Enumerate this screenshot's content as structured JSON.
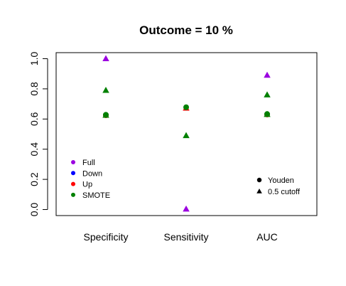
{
  "chart_data": {
    "type": "scatter",
    "title": "Outcome =  10 %",
    "categories": [
      "Specificity",
      "Sensitivity",
      "AUC"
    ],
    "y_ticks": [
      "0.0",
      "0.2",
      "0.4",
      "0.6",
      "0.8",
      "1.0"
    ],
    "ylim": [
      -0.04,
      1.04
    ],
    "grid": false,
    "methods": [
      {
        "name": "Full",
        "color": "#9b00e0"
      },
      {
        "name": "Down",
        "color": "#0000ff"
      },
      {
        "name": "Up",
        "color": "#ff0000"
      },
      {
        "name": "SMOTE",
        "color": "#008000"
      }
    ],
    "shapes": [
      {
        "name": "Youden",
        "marker": "circle"
      },
      {
        "name": "0.5 cutoff",
        "marker": "triangle"
      }
    ],
    "points": [
      {
        "category": "Specificity",
        "method": "Up",
        "shape": "Youden",
        "y": 0.625
      },
      {
        "category": "Specificity",
        "method": "SMOTE",
        "shape": "Youden",
        "y": 0.628
      },
      {
        "category": "Specificity",
        "method": "Full",
        "shape": "0.5 cutoff",
        "y": 1.0
      },
      {
        "category": "Specificity",
        "method": "SMOTE",
        "shape": "0.5 cutoff",
        "y": 0.79
      },
      {
        "category": "Specificity",
        "method": "SMOTE",
        "shape": "0.5 cutoff",
        "y": 0.625
      },
      {
        "category": "Sensitivity",
        "method": "Up",
        "shape": "0.5 cutoff",
        "y": 0.672
      },
      {
        "category": "Sensitivity",
        "method": "SMOTE",
        "shape": "Youden",
        "y": 0.678
      },
      {
        "category": "Sensitivity",
        "method": "SMOTE",
        "shape": "0.5 cutoff",
        "y": 0.49
      },
      {
        "category": "Sensitivity",
        "method": "Full",
        "shape": "0.5 cutoff",
        "y": 0.003
      },
      {
        "category": "AUC",
        "method": "Up",
        "shape": "Youden",
        "y": 0.63
      },
      {
        "category": "AUC",
        "method": "SMOTE",
        "shape": "Youden",
        "y": 0.633
      },
      {
        "category": "AUC",
        "method": "Full",
        "shape": "0.5 cutoff",
        "y": 0.89
      },
      {
        "category": "AUC",
        "method": "SMOTE",
        "shape": "0.5 cutoff",
        "y": 0.76
      },
      {
        "category": "AUC",
        "method": "SMOTE",
        "shape": "0.5 cutoff",
        "y": 0.63
      }
    ],
    "legends": {
      "methods_position": "bottom-left",
      "shapes_position": "bottom-right"
    }
  }
}
